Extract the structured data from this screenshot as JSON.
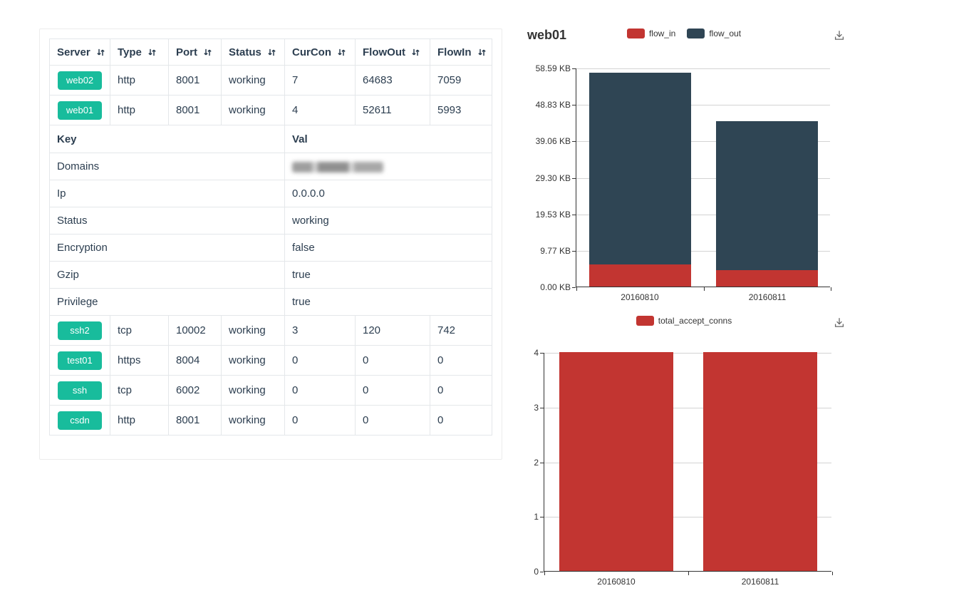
{
  "page": {
    "background": "#ffffff",
    "badge_color": "#18bc9c"
  },
  "table": {
    "headers": [
      {
        "label": "Server",
        "sortable": true
      },
      {
        "label": "Type",
        "sortable": true
      },
      {
        "label": "Port",
        "sortable": true
      },
      {
        "label": "Status",
        "sortable": true
      },
      {
        "label": "CurCon",
        "sortable": true
      },
      {
        "label": "FlowOut",
        "sortable": true
      },
      {
        "label": "FlowIn",
        "sortable": true
      }
    ],
    "top_rows": [
      {
        "server": "web02",
        "type": "http",
        "port": "8001",
        "status": "working",
        "curcon": "7",
        "flowout": "64683",
        "flowin": "7059"
      },
      {
        "server": "web01",
        "type": "http",
        "port": "8001",
        "status": "working",
        "curcon": "4",
        "flowout": "52611",
        "flowin": "5993"
      }
    ],
    "detail": {
      "key_header": "Key",
      "val_header": "Val",
      "rows": [
        {
          "key": "Domains",
          "val": "",
          "masked": true
        },
        {
          "key": "Ip",
          "val": "0.0.0.0"
        },
        {
          "key": "Status",
          "val": "working"
        },
        {
          "key": "Encryption",
          "val": "false"
        },
        {
          "key": "Gzip",
          "val": "true"
        },
        {
          "key": "Privilege",
          "val": "true"
        }
      ]
    },
    "bottom_rows": [
      {
        "server": "ssh2",
        "type": "tcp",
        "port": "10002",
        "status": "working",
        "curcon": "3",
        "flowout": "120",
        "flowin": "742"
      },
      {
        "server": "test01",
        "type": "https",
        "port": "8004",
        "status": "working",
        "curcon": "0",
        "flowout": "0",
        "flowin": "0"
      },
      {
        "server": "ssh",
        "type": "tcp",
        "port": "6002",
        "status": "working",
        "curcon": "0",
        "flowout": "0",
        "flowin": "0"
      },
      {
        "server": "csdn",
        "type": "http",
        "port": "8001",
        "status": "working",
        "curcon": "0",
        "flowout": "0",
        "flowin": "0"
      }
    ]
  },
  "chart_data": [
    {
      "type": "bar",
      "stacked": true,
      "title": "web01",
      "categories": [
        "20160810",
        "20160811"
      ],
      "series": [
        {
          "name": "flow_in",
          "color": "#c23531",
          "values": [
            5.85,
            4.39
          ]
        },
        {
          "name": "flow_out",
          "color": "#2f4554",
          "values": [
            51.38,
            39.89
          ]
        }
      ],
      "value_unit": "KB",
      "ymax": 58.59,
      "y_ticks": [
        "0.00 KB",
        "9.77 KB",
        "19.53 KB",
        "29.30 KB",
        "39.06 KB",
        "48.83 KB",
        "58.59 KB"
      ],
      "legend_position": "top-center",
      "grid": true,
      "toolbox": [
        "save-as-image"
      ]
    },
    {
      "type": "bar",
      "stacked": false,
      "title": "",
      "categories": [
        "20160810",
        "20160811"
      ],
      "series": [
        {
          "name": "total_accept_conns",
          "color": "#c23531",
          "values": [
            4,
            4
          ]
        }
      ],
      "ymax": 4,
      "y_ticks": [
        "0",
        "1",
        "2",
        "3",
        "4"
      ],
      "legend_position": "top-center",
      "grid": true,
      "toolbox": [
        "save-as-image"
      ]
    }
  ]
}
